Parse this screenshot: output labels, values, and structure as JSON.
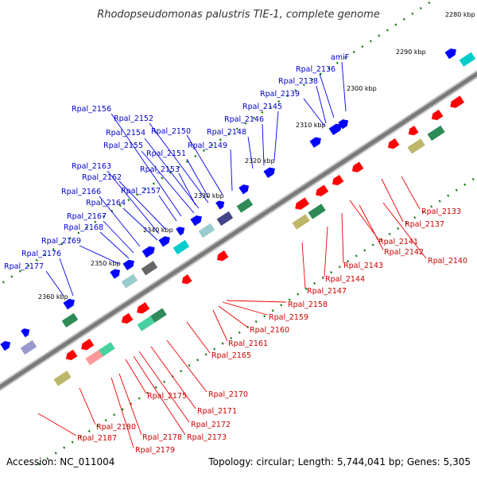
{
  "title": "Rhodopseudomonas palustris TIE-1, complete genome",
  "footer": {
    "accession": "Accession: NC_011004",
    "summary": "Topology: circular; Length: 5,744,041 bp; Genes: 5,305"
  },
  "colors": {
    "forward_gene": "#0000ff",
    "reverse_gene": "#ff0000",
    "backbone": "#808080",
    "tick": "#1a7f1a",
    "blue_label": "#0000cc",
    "red_label": "#cc0000"
  },
  "kbp_marks": [
    {
      "label": "2280 kbp",
      "kbp": 2280
    },
    {
      "label": "2290 kbp",
      "kbp": 2290
    },
    {
      "label": "2300 kbp",
      "kbp": 2300
    },
    {
      "label": "2310 kbp",
      "kbp": 2310
    },
    {
      "label": "2320 kbp",
      "kbp": 2320
    },
    {
      "label": "2330 kbp",
      "kbp": 2330
    },
    {
      "label": "2340 kbp",
      "kbp": 2340
    },
    {
      "label": "2350 kbp",
      "kbp": 2350
    },
    {
      "label": "2360 kbp",
      "kbp": 2360
    }
  ],
  "forward_labels": [
    "amiF",
    "Rpal_2136",
    "Rpal_2138",
    "Rpal_2139",
    "Rpal_2145",
    "Rpal_2146",
    "Rpal_2148",
    "Rpal_2149",
    "Rpal_2150",
    "Rpal_2151",
    "Rpal_2152",
    "Rpal_2153",
    "Rpal_2154",
    "Rpal_2155",
    "Rpal_2156",
    "Rpal_2157",
    "Rpal_2162",
    "Rpal_2163",
    "Rpal_2164",
    "Rpal_2166",
    "Rpal_2167",
    "Rpal_2168",
    "Rpal_2169",
    "Rpal_2176",
    "Rpal_2177"
  ],
  "reverse_labels": [
    "Rpal_2133",
    "Rpal_2137",
    "Rpal_2140",
    "Rpal_2141",
    "Rpal_2142",
    "Rpal_2143",
    "Rpal_2144",
    "Rpal_2147",
    "Rpal_2158",
    "Rpal_2159",
    "Rpal_2160",
    "Rpal_2161",
    "Rpal_2165",
    "Rpal_2170",
    "Rpal_2171",
    "Rpal_2172",
    "Rpal_2173",
    "Rpal_2175",
    "Rpal_2178",
    "Rpal_2179",
    "Rpal_2180",
    "Rpal_2187"
  ]
}
